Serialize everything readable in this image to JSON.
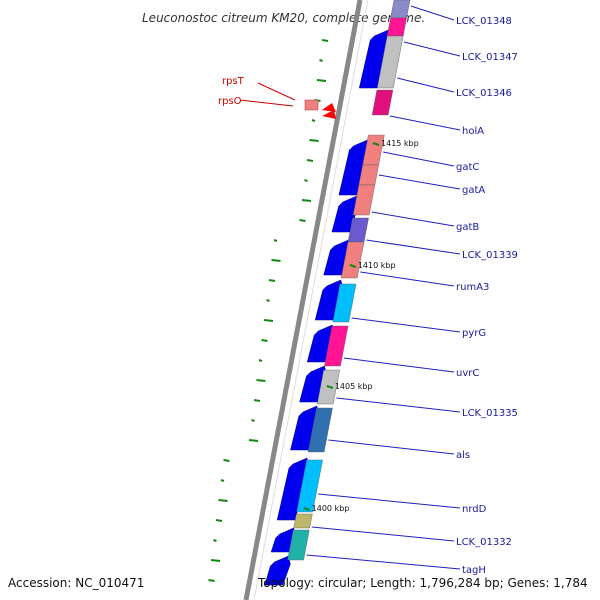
{
  "title": "Leuconostoc citreum KM20, complete genome.",
  "footer": {
    "accession": "Accession: NC_010471",
    "topology": "Topology: circular; Length: 1,796,284 bp; Genes: 1,784"
  },
  "colors": {
    "backbone": "#888888",
    "forward_strand": "#0000ee",
    "gc_skew": "#118811",
    "label_blue": "#1a1aa0",
    "label_red": "#cc0000"
  },
  "tick_labels": [
    "1415 kbp",
    "1410 kbp",
    "1405 kbp",
    "1400 kbp"
  ],
  "right_genes": [
    {
      "label": "LCK_01348",
      "color": "#8a8ac8"
    },
    {
      "label": "LCK_01347",
      "color": "#ff1493"
    },
    {
      "label": "LCK_01346",
      "color": "#c0c0c0"
    },
    {
      "label": "holA",
      "color": "#e0117f"
    },
    {
      "label": "gatC",
      "color": "#f08080"
    },
    {
      "label": "gatA",
      "color": "#f08080"
    },
    {
      "label": "gatB",
      "color": "#f08080"
    },
    {
      "label": "LCK_01339",
      "color": "#6a5acd"
    },
    {
      "label": "rumA3",
      "color": "#f08080"
    },
    {
      "label": "pyrG",
      "color": "#00bfff"
    },
    {
      "label": "uvrC",
      "color": "#ff1493"
    },
    {
      "label": "LCK_01335",
      "color": "#c0c0c0"
    },
    {
      "label": "als",
      "color": "#3070b0"
    },
    {
      "label": "nrdD",
      "color": "#00bfff"
    },
    {
      "label": "LCK_01332",
      "color": "#bdb76b"
    },
    {
      "label": "tagH",
      "color": "#20b2aa"
    }
  ],
  "left_genes": [
    {
      "label": "rpsT",
      "color": "#f08080"
    },
    {
      "label": "rpsO",
      "color": "#ff0000"
    }
  ]
}
